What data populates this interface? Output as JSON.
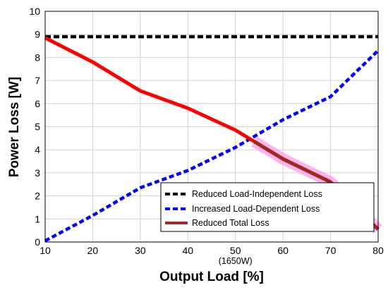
{
  "chart_data": {
    "type": "line",
    "xlabel": "Output Load [%]",
    "ylabel": "Power Loss [W]",
    "xlim": [
      10,
      80
    ],
    "ylim": [
      0,
      10
    ],
    "xticks": [
      10,
      20,
      30,
      40,
      50,
      60,
      70,
      80
    ],
    "yticks": [
      0,
      1,
      2,
      3,
      4,
      5,
      6,
      7,
      8,
      9,
      10
    ],
    "grid": true,
    "legend_position": "bottom-right",
    "annotations": [
      {
        "text": "(1650W)",
        "x": 50
      }
    ],
    "series": [
      {
        "name": "Reduced Load-Independent Loss",
        "color": "#000000",
        "style": "dashed",
        "x": [
          10,
          20,
          30,
          40,
          50,
          60,
          70,
          80
        ],
        "y": [
          8.9,
          8.9,
          8.9,
          8.9,
          8.9,
          8.9,
          8.9,
          8.9
        ]
      },
      {
        "name": "Increased Load-Dependent Loss",
        "color": "#0000ff",
        "style": "dashed",
        "x": [
          10,
          20,
          30,
          40,
          50,
          60,
          70,
          80
        ],
        "y": [
          0.05,
          1.15,
          2.35,
          3.1,
          4.1,
          5.3,
          6.3,
          8.3
        ]
      },
      {
        "name": "Reduced Total Loss",
        "color": "#ff0000",
        "legend_color": "#a52a2a",
        "style": "solid",
        "x": [
          10,
          20,
          30,
          40,
          50,
          60,
          70,
          80
        ],
        "y": [
          8.85,
          7.8,
          6.55,
          5.8,
          4.85,
          3.6,
          2.6,
          0.55
        ]
      }
    ]
  }
}
